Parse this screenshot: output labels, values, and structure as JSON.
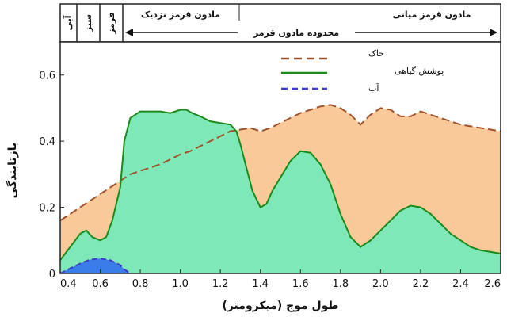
{
  "chart_data": {
    "type": "area",
    "title": "",
    "xlabel": "طول موج (میکرومتر)",
    "ylabel": "بازتابندگی",
    "xlim": [
      0.4,
      2.6
    ],
    "ylim": [
      0,
      0.7
    ],
    "xticks": [
      "0.4",
      "0.6",
      "0.8",
      "1.0",
      "1.2",
      "1.4",
      "1.6",
      "1.8",
      "2.0",
      "2.2",
      "2.4",
      "2.6"
    ],
    "yticks": [
      "0",
      "0.2",
      "0.4",
      "0.6"
    ],
    "bands": {
      "blue": "آبی",
      "green": "سبز",
      "red": "قرمز",
      "near_ir": "مادون قرمز نزدیک",
      "mid_ir": "مادون قرمز میانی",
      "ir_range": "محدوده مادون قرمز"
    },
    "legend_position": "top-center",
    "series": [
      {
        "name": "خاک",
        "color": "#a0522d",
        "fill": "#f9c99a",
        "x": [
          0.4,
          0.45,
          0.5,
          0.55,
          0.6,
          0.65,
          0.7,
          0.75,
          0.8,
          0.85,
          0.9,
          0.95,
          1.0,
          1.05,
          1.1,
          1.15,
          1.2,
          1.25,
          1.3,
          1.35,
          1.4,
          1.45,
          1.5,
          1.55,
          1.6,
          1.65,
          1.7,
          1.75,
          1.8,
          1.85,
          1.9,
          1.95,
          2.0,
          2.05,
          2.1,
          2.15,
          2.2,
          2.25,
          2.3,
          2.35,
          2.4,
          2.45,
          2.5,
          2.55,
          2.6
        ],
        "values": [
          0.16,
          0.18,
          0.2,
          0.22,
          0.24,
          0.26,
          0.28,
          0.3,
          0.31,
          0.32,
          0.33,
          0.345,
          0.36,
          0.37,
          0.385,
          0.4,
          0.415,
          0.43,
          0.435,
          0.44,
          0.43,
          0.44,
          0.455,
          0.47,
          0.485,
          0.495,
          0.505,
          0.51,
          0.5,
          0.48,
          0.45,
          0.48,
          0.5,
          0.495,
          0.475,
          0.475,
          0.49,
          0.48,
          0.47,
          0.46,
          0.45,
          0.445,
          0.44,
          0.435,
          0.43
        ]
      },
      {
        "name": "پوشش گیاهی",
        "color": "#1b8a1b",
        "fill": "#7fe8b8",
        "x": [
          0.4,
          0.45,
          0.5,
          0.53,
          0.56,
          0.6,
          0.63,
          0.66,
          0.7,
          0.72,
          0.75,
          0.8,
          0.85,
          0.9,
          0.95,
          1.0,
          1.03,
          1.06,
          1.1,
          1.15,
          1.2,
          1.25,
          1.28,
          1.3,
          1.33,
          1.36,
          1.4,
          1.43,
          1.46,
          1.5,
          1.55,
          1.6,
          1.65,
          1.7,
          1.75,
          1.8,
          1.85,
          1.9,
          1.95,
          2.0,
          2.05,
          2.1,
          2.15,
          2.2,
          2.25,
          2.3,
          2.35,
          2.4,
          2.45,
          2.5,
          2.55,
          2.6
        ],
        "values": [
          0.04,
          0.08,
          0.12,
          0.13,
          0.11,
          0.1,
          0.11,
          0.16,
          0.26,
          0.4,
          0.47,
          0.49,
          0.49,
          0.49,
          0.485,
          0.495,
          0.495,
          0.485,
          0.475,
          0.46,
          0.455,
          0.45,
          0.43,
          0.39,
          0.32,
          0.25,
          0.2,
          0.21,
          0.25,
          0.29,
          0.34,
          0.37,
          0.365,
          0.33,
          0.27,
          0.18,
          0.11,
          0.08,
          0.1,
          0.13,
          0.16,
          0.19,
          0.205,
          0.2,
          0.18,
          0.15,
          0.12,
          0.1,
          0.08,
          0.07,
          0.065,
          0.06
        ]
      },
      {
        "name": "آب",
        "color": "#3c3cc8",
        "fill": "#3a7de8",
        "x": [
          0.4,
          0.45,
          0.5,
          0.55,
          0.6,
          0.65,
          0.7,
          0.72,
          0.75
        ],
        "values": [
          0.0,
          0.015,
          0.03,
          0.042,
          0.045,
          0.04,
          0.025,
          0.012,
          0.0
        ]
      }
    ]
  }
}
